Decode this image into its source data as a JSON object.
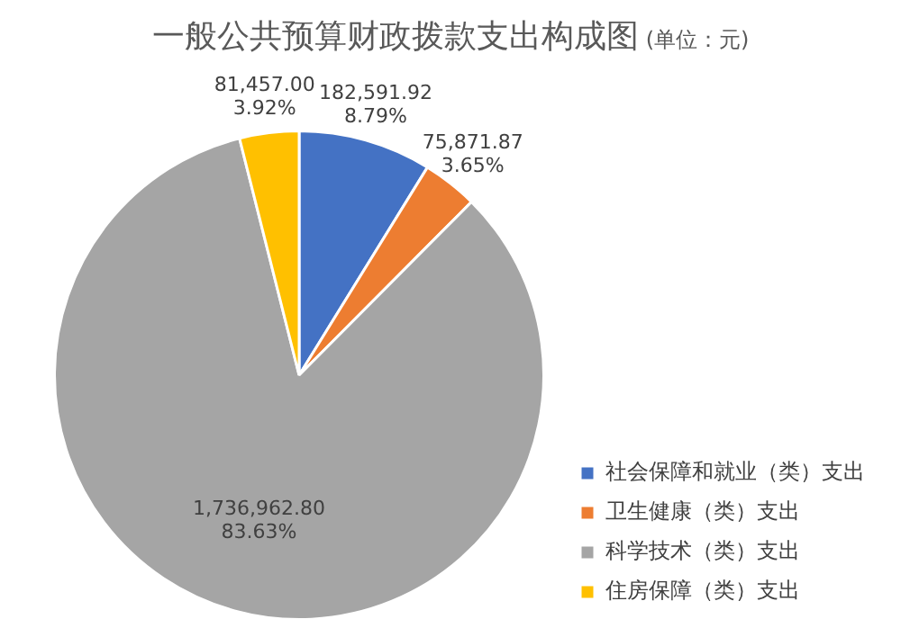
{
  "chart_data": {
    "type": "pie",
    "title": "一般公共预算财政拨款支出构成图",
    "subtitle": "(单位：元)",
    "categories": [
      "社会保障和就业（类）支出",
      "卫生健康（类）支出",
      "科学技术（类）支出",
      "住房保障（类）支出"
    ],
    "values": [
      182591.92,
      75871.87,
      1736962.8,
      81457.0
    ],
    "colors": [
      "#4472c4",
      "#ed7d31",
      "#a5a5a5",
      "#ffc000"
    ],
    "value_labels": [
      "182,591.92\n8.79%",
      "75,871.87\n3.65%",
      "1,736,962.80\n83.63%",
      "81,457.00\n3.92%"
    ],
    "legend": "bottom right"
  }
}
